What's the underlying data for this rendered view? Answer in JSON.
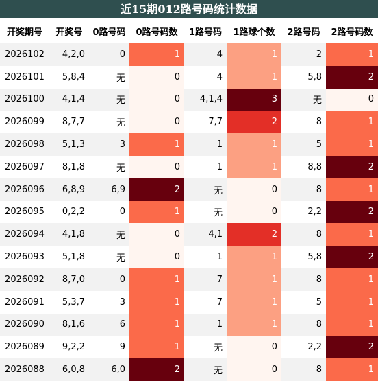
{
  "title": "近15期012路号码统计数据",
  "columns": [
    "开奖期号",
    "开奖号",
    "0路号码",
    "0路号码数",
    "1路号码",
    "1路球个数",
    "2路号码",
    "2路号码数"
  ],
  "rows": [
    {
      "issue": "2026102",
      "draw": "4,2,0",
      "r0": "0",
      "c0": 1,
      "r1": "4",
      "c1": 1,
      "r2": "2",
      "c2": 1
    },
    {
      "issue": "2026101",
      "draw": "5,8,4",
      "r0": "无",
      "c0": 0,
      "r1": "4",
      "c1": 1,
      "r2": "5,8",
      "c2": 2
    },
    {
      "issue": "2026100",
      "draw": "4,1,4",
      "r0": "无",
      "c0": 0,
      "r1": "4,1,4",
      "c1": 3,
      "r2": "无",
      "c2": 0
    },
    {
      "issue": "2026099",
      "draw": "8,7,7",
      "r0": "无",
      "c0": 0,
      "r1": "7,7",
      "c1": 2,
      "r2": "8",
      "c2": 1
    },
    {
      "issue": "2026098",
      "draw": "5,1,3",
      "r0": "3",
      "c0": 1,
      "r1": "1",
      "c1": 1,
      "r2": "5",
      "c2": 1
    },
    {
      "issue": "2026097",
      "draw": "8,1,8",
      "r0": "无",
      "c0": 0,
      "r1": "1",
      "c1": 1,
      "r2": "8,8",
      "c2": 2
    },
    {
      "issue": "2026096",
      "draw": "6,8,9",
      "r0": "6,9",
      "c0": 2,
      "r1": "无",
      "c1": 0,
      "r2": "8",
      "c2": 1
    },
    {
      "issue": "2026095",
      "draw": "0,2,2",
      "r0": "0",
      "c0": 1,
      "r1": "无",
      "c1": 0,
      "r2": "2,2",
      "c2": 2
    },
    {
      "issue": "2026094",
      "draw": "4,1,8",
      "r0": "无",
      "c0": 0,
      "r1": "4,1",
      "c1": 2,
      "r2": "8",
      "c2": 1
    },
    {
      "issue": "2026093",
      "draw": "5,1,8",
      "r0": "无",
      "c0": 0,
      "r1": "1",
      "c1": 1,
      "r2": "5,8",
      "c2": 2
    },
    {
      "issue": "2026092",
      "draw": "8,7,0",
      "r0": "0",
      "c0": 1,
      "r1": "7",
      "c1": 1,
      "r2": "8",
      "c2": 1
    },
    {
      "issue": "2026091",
      "draw": "5,3,7",
      "r0": "3",
      "c0": 1,
      "r1": "7",
      "c1": 1,
      "r2": "5",
      "c2": 1
    },
    {
      "issue": "2026090",
      "draw": "8,1,6",
      "r0": "6",
      "c0": 1,
      "r1": "1",
      "c1": 1,
      "r2": "8",
      "c2": 1
    },
    {
      "issue": "2026089",
      "draw": "9,2,2",
      "r0": "9",
      "c0": 1,
      "r1": "无",
      "c1": 0,
      "r2": "2,2",
      "c2": 2
    },
    {
      "issue": "2026088",
      "draw": "6,0,8",
      "r0": "6,0",
      "c0": 2,
      "r1": "无",
      "c1": 0,
      "r2": "8",
      "c2": 1
    }
  ],
  "heat_colors": {
    "c0": {
      "0": "#fff5f0",
      "1": "#fb6a4a",
      "2": "#67000d"
    },
    "c1": {
      "0": "#fff5f0",
      "1": "#fca082",
      "2": "#e32f27",
      "3": "#67000d"
    },
    "c2": {
      "0": "#fff5f0",
      "1": "#fb6a4a",
      "2": "#67000d"
    }
  },
  "header_bg": "#2f4f4f",
  "stripe_bg": "#f2f2f2"
}
